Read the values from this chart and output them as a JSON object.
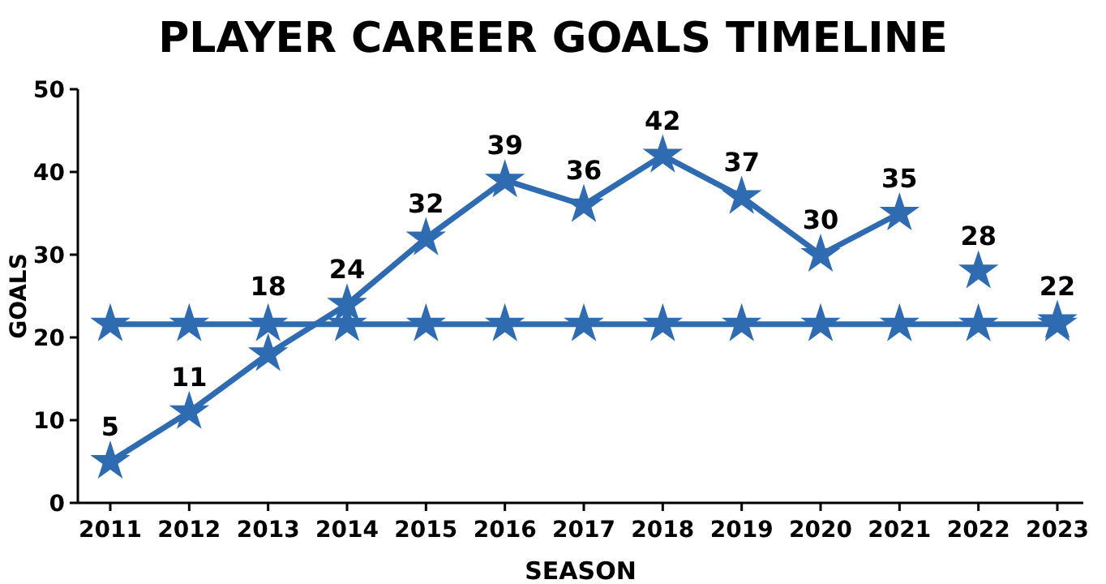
{
  "chart_data": {
    "type": "line",
    "title": "PLAYER CAREER GOALS TIMELINE",
    "xlabel": "SEASON",
    "ylabel": "GOALS",
    "categories": [
      "2011",
      "2012",
      "2013",
      "2014",
      "2015",
      "2016",
      "2017",
      "2018",
      "2019",
      "2020",
      "2021",
      "2022",
      "2023"
    ],
    "series": [
      {
        "color": "#2e6bb0",
        "values": [
          5,
          11,
          18,
          24,
          32,
          39,
          36,
          42,
          37,
          30,
          35,
          null,
          null
        ],
        "value_labels": [
          "5",
          "11",
          "18",
          "24",
          "32",
          "39",
          "36",
          "42",
          "37",
          "30",
          "35",
          null,
          null
        ]
      },
      {
        "type": "scatter",
        "color": "#2e6bb0",
        "values": [
          null,
          null,
          null,
          null,
          null,
          null,
          null,
          null,
          null,
          null,
          null,
          28,
          22
        ],
        "value_labels": [
          null,
          null,
          null,
          null,
          null,
          null,
          null,
          null,
          null,
          null,
          null,
          "28",
          "22"
        ]
      },
      {
        "color": "#2e6bb0",
        "values": [
          21.6,
          21.6,
          21.6,
          21.6,
          21.6,
          21.6,
          21.6,
          21.6,
          21.6,
          21.6,
          21.6,
          21.6,
          21.6
        ]
      }
    ],
    "ylim": [
      0,
      50
    ],
    "yticks": [
      0,
      10,
      20,
      30,
      40,
      50
    ],
    "grid": false,
    "marker": "star",
    "line_style": "solid"
  }
}
